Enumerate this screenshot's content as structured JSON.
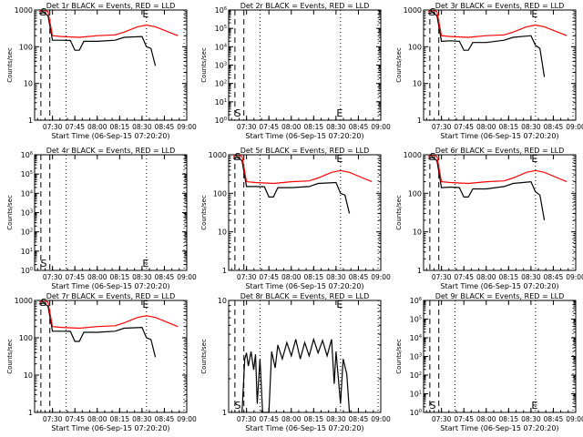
{
  "x_ticks": [
    "07:30",
    "07:45",
    "08:00",
    "08:15",
    "08:30",
    "08:45",
    "09:00"
  ],
  "xlabel": "Start Time (06-Sep-15 07:20:20)",
  "ylabel": "Counts/sec",
  "marker_S": "S",
  "marker_E": "E",
  "colors": {
    "events": "#000000",
    "lld": "#ff0000",
    "frame": "#000000"
  },
  "chart_data": [
    {
      "type": "line",
      "title": "Det 1r BLACK = Events, RED = LLD",
      "ylim": [
        1,
        1000
      ],
      "log": true,
      "series": [
        {
          "name": "BLACK = Events",
          "color": "#000000",
          "points": [
            [
              7.35,
              800
            ],
            [
              7.4,
              850
            ],
            [
              7.45,
              700
            ],
            [
              7.5,
              150
            ],
            [
              7.6,
              150
            ],
            [
              7.7,
              148
            ],
            [
              7.75,
              80
            ],
            [
              7.8,
              80
            ],
            [
              7.85,
              140
            ],
            [
              8.0,
              140
            ],
            [
              8.2,
              150
            ],
            [
              8.3,
              180
            ],
            [
              8.5,
              190
            ],
            [
              8.55,
              100
            ],
            [
              8.6,
              90
            ],
            [
              8.65,
              30
            ]
          ]
        },
        {
          "name": "RED = LLD",
          "color": "#ff0000",
          "points": [
            [
              7.35,
              900
            ],
            [
              7.4,
              1000
            ],
            [
              7.45,
              900
            ],
            [
              7.5,
              200
            ],
            [
              7.6,
              190
            ],
            [
              7.8,
              180
            ],
            [
              8.0,
              200
            ],
            [
              8.2,
              210
            ],
            [
              8.3,
              250
            ],
            [
              8.45,
              350
            ],
            [
              8.55,
              390
            ],
            [
              8.65,
              350
            ],
            [
              8.8,
              250
            ],
            [
              8.9,
              200
            ]
          ]
        }
      ]
    },
    {
      "type": "line",
      "title": "Det 2r BLACK = Events, RED = LLD",
      "ylim": [
        1,
        1000000
      ],
      "log": true,
      "series": []
    },
    {
      "type": "line",
      "title": "Det 3r BLACK = Events, RED = LLD",
      "ylim": [
        1,
        1000
      ],
      "log": true,
      "series": [
        {
          "name": "BLACK = Events",
          "color": "#000000",
          "points": [
            [
              7.35,
              800
            ],
            [
              7.4,
              850
            ],
            [
              7.45,
              700
            ],
            [
              7.5,
              140
            ],
            [
              7.6,
              145
            ],
            [
              7.7,
              140
            ],
            [
              7.75,
              80
            ],
            [
              7.8,
              80
            ],
            [
              7.85,
              130
            ],
            [
              8.0,
              130
            ],
            [
              8.2,
              150
            ],
            [
              8.3,
              180
            ],
            [
              8.5,
              200
            ],
            [
              8.55,
              110
            ],
            [
              8.6,
              90
            ],
            [
              8.65,
              15
            ]
          ]
        },
        {
          "name": "RED = LLD",
          "color": "#ff0000",
          "points": [
            [
              7.35,
              900
            ],
            [
              7.4,
              1000
            ],
            [
              7.45,
              900
            ],
            [
              7.5,
              200
            ],
            [
              7.6,
              190
            ],
            [
              7.8,
              180
            ],
            [
              8.0,
              200
            ],
            [
              8.2,
              210
            ],
            [
              8.3,
              250
            ],
            [
              8.45,
              350
            ],
            [
              8.55,
              390
            ],
            [
              8.65,
              350
            ],
            [
              8.8,
              250
            ],
            [
              8.9,
              200
            ]
          ]
        }
      ]
    },
    {
      "type": "line",
      "title": "Det 4r BLACK = Events, RED = LLD",
      "ylim": [
        1,
        1000000
      ],
      "log": true,
      "series": []
    },
    {
      "type": "line",
      "title": "Det 5r BLACK = Events, RED = LLD",
      "ylim": [
        1,
        1000
      ],
      "log": true,
      "series": [
        {
          "name": "BLACK = Events",
          "color": "#000000",
          "points": [
            [
              7.35,
              800
            ],
            [
              7.4,
              850
            ],
            [
              7.45,
              700
            ],
            [
              7.5,
              150
            ],
            [
              7.6,
              150
            ],
            [
              7.7,
              148
            ],
            [
              7.75,
              80
            ],
            [
              7.8,
              80
            ],
            [
              7.85,
              140
            ],
            [
              8.0,
              140
            ],
            [
              8.2,
              150
            ],
            [
              8.3,
              180
            ],
            [
              8.5,
              190
            ],
            [
              8.55,
              100
            ],
            [
              8.6,
              90
            ],
            [
              8.65,
              30
            ]
          ]
        },
        {
          "name": "RED = LLD",
          "color": "#ff0000",
          "points": [
            [
              7.35,
              900
            ],
            [
              7.4,
              1000
            ],
            [
              7.45,
              900
            ],
            [
              7.5,
              200
            ],
            [
              7.6,
              190
            ],
            [
              7.8,
              180
            ],
            [
              8.0,
              200
            ],
            [
              8.2,
              210
            ],
            [
              8.3,
              250
            ],
            [
              8.45,
              350
            ],
            [
              8.55,
              390
            ],
            [
              8.65,
              350
            ],
            [
              8.8,
              250
            ],
            [
              8.9,
              200
            ]
          ]
        }
      ]
    },
    {
      "type": "line",
      "title": "Det 6r BLACK = Events, RED = LLD",
      "ylim": [
        1,
        1000
      ],
      "log": true,
      "series": [
        {
          "name": "BLACK = Events",
          "color": "#000000",
          "points": [
            [
              7.35,
              800
            ],
            [
              7.4,
              850
            ],
            [
              7.45,
              700
            ],
            [
              7.5,
              140
            ],
            [
              7.6,
              145
            ],
            [
              7.7,
              140
            ],
            [
              7.75,
              80
            ],
            [
              7.8,
              80
            ],
            [
              7.85,
              130
            ],
            [
              8.0,
              130
            ],
            [
              8.2,
              150
            ],
            [
              8.3,
              180
            ],
            [
              8.5,
              200
            ],
            [
              8.55,
              110
            ],
            [
              8.6,
              90
            ],
            [
              8.65,
              20
            ]
          ]
        },
        {
          "name": "RED = LLD",
          "color": "#ff0000",
          "points": [
            [
              7.35,
              900
            ],
            [
              7.4,
              1000
            ],
            [
              7.45,
              900
            ],
            [
              7.5,
              200
            ],
            [
              7.6,
              190
            ],
            [
              7.8,
              180
            ],
            [
              8.0,
              200
            ],
            [
              8.2,
              210
            ],
            [
              8.3,
              250
            ],
            [
              8.45,
              350
            ],
            [
              8.55,
              390
            ],
            [
              8.65,
              350
            ],
            [
              8.8,
              250
            ],
            [
              8.9,
              200
            ]
          ]
        }
      ]
    },
    {
      "type": "line",
      "title": "Det 7r BLACK = Events, RED = LLD",
      "ylim": [
        1,
        1000
      ],
      "log": true,
      "series": [
        {
          "name": "BLACK = Events",
          "color": "#000000",
          "points": [
            [
              7.35,
              800
            ],
            [
              7.4,
              850
            ],
            [
              7.45,
              700
            ],
            [
              7.5,
              150
            ],
            [
              7.6,
              150
            ],
            [
              7.7,
              148
            ],
            [
              7.75,
              80
            ],
            [
              7.8,
              80
            ],
            [
              7.85,
              140
            ],
            [
              8.0,
              140
            ],
            [
              8.2,
              150
            ],
            [
              8.3,
              180
            ],
            [
              8.5,
              190
            ],
            [
              8.55,
              100
            ],
            [
              8.6,
              90
            ],
            [
              8.65,
              30
            ]
          ]
        },
        {
          "name": "RED = LLD",
          "color": "#ff0000",
          "points": [
            [
              7.35,
              900
            ],
            [
              7.4,
              1000
            ],
            [
              7.45,
              900
            ],
            [
              7.5,
              200
            ],
            [
              7.6,
              190
            ],
            [
              7.8,
              180
            ],
            [
              8.0,
              200
            ],
            [
              8.2,
              210
            ],
            [
              8.3,
              250
            ],
            [
              8.45,
              350
            ],
            [
              8.55,
              390
            ],
            [
              8.65,
              350
            ],
            [
              8.8,
              250
            ],
            [
              8.9,
              200
            ]
          ]
        }
      ]
    },
    {
      "type": "line",
      "title": "Det 8r BLACK = Events, RED = LLD",
      "ylim": [
        1,
        10
      ],
      "log": true,
      "series": [
        {
          "name": "BLACK = Events",
          "color": "#000000",
          "points": [
            [
              7.45,
              1
            ],
            [
              7.48,
              3
            ],
            [
              7.5,
              3.4
            ],
            [
              7.52,
              2.6
            ],
            [
              7.55,
              3.5
            ],
            [
              7.58,
              2.4
            ],
            [
              7.6,
              3.3
            ],
            [
              7.62,
              1.2
            ],
            [
              7.65,
              3
            ],
            [
              7.68,
              1
            ],
            [
              7.75,
              1
            ],
            [
              7.78,
              3.5
            ],
            [
              7.82,
              2.5
            ],
            [
              7.85,
              4
            ],
            [
              7.9,
              3
            ],
            [
              7.95,
              4.2
            ],
            [
              8.0,
              3.2
            ],
            [
              8.05,
              4.5
            ],
            [
              8.1,
              3
            ],
            [
              8.15,
              4.2
            ],
            [
              8.2,
              3.2
            ],
            [
              8.25,
              4.5
            ],
            [
              8.3,
              3.4
            ],
            [
              8.35,
              4.4
            ],
            [
              8.4,
              3.2
            ],
            [
              8.45,
              4.5
            ],
            [
              8.48,
              1.8
            ],
            [
              8.5,
              3.5
            ],
            [
              8.55,
              1.2
            ],
            [
              8.58,
              3
            ],
            [
              8.62,
              2.2
            ],
            [
              8.65,
              1
            ]
          ]
        }
      ]
    },
    {
      "type": "line",
      "title": "Det 9r BLACK = Events, RED = LLD",
      "ylim": [
        1,
        1000000
      ],
      "log": true,
      "series": []
    }
  ]
}
